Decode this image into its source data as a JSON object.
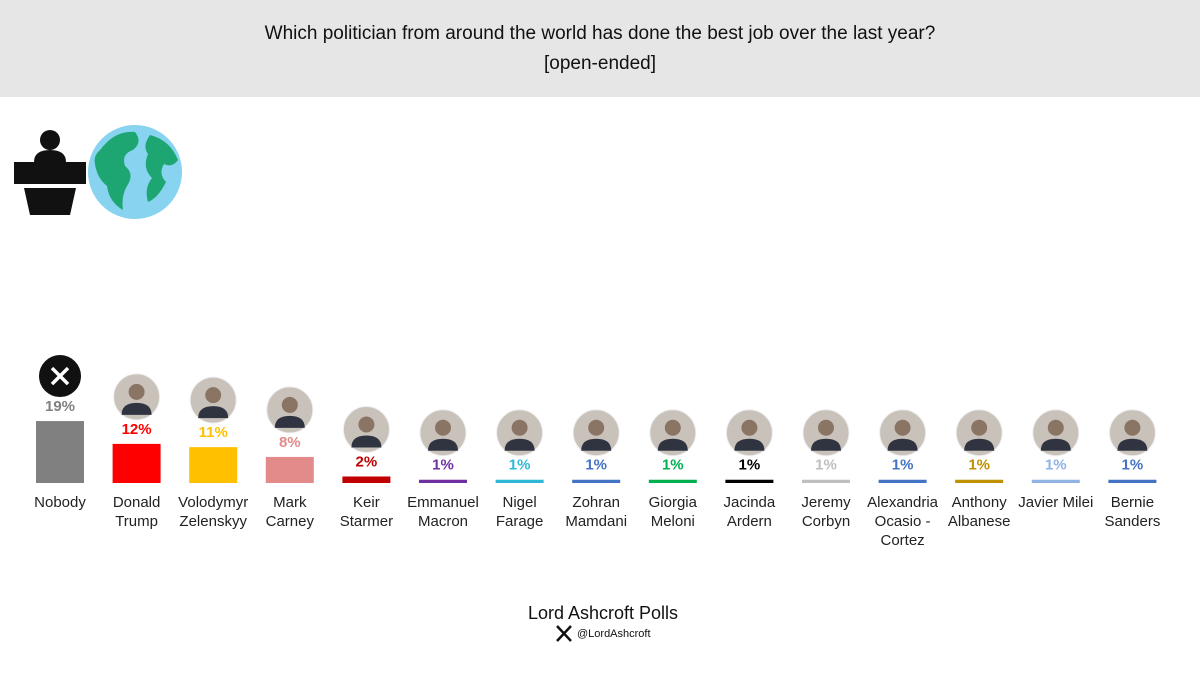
{
  "chart_data": {
    "type": "bar",
    "title": "Which politician from around the world has done the best job over the last year?",
    "subtitle": "[open-ended]",
    "categories": [
      "Nobody",
      "Donald Trump",
      "Volodymyr Zelenskyy",
      "Mark Carney",
      "Keir Starmer",
      "Emmanuel Macron",
      "Nigel Farage",
      "Zohran Mamdani",
      "Giorgia Meloni",
      "Jacinda Ardern",
      "Jeremy Corbyn",
      "Alexandria Ocasio - Cortez",
      "Anthony Albanese",
      "Javier Milei",
      "Bernie Sanders"
    ],
    "values": [
      19,
      12,
      11,
      8,
      2,
      1,
      1,
      1,
      1,
      1,
      1,
      1,
      1,
      1,
      1
    ],
    "value_labels": [
      "19%",
      "12%",
      "11%",
      "8%",
      "2%",
      "1%",
      "1%",
      "1%",
      "1%",
      "1%",
      "1%",
      "1%",
      "1%",
      "1%",
      "1%"
    ],
    "colors": [
      "#808080",
      "#ff0000",
      "#ffc000",
      "#e38a8a",
      "#c00000",
      "#7030a0",
      "#2eb8d6",
      "#4472c4",
      "#00b050",
      "#000000",
      "#bfbfbf",
      "#4472c4",
      "#bf9000",
      "#8fb4e3",
      "#4472c4"
    ]
  },
  "footer": {
    "title": "Lord Ashcroft Polls",
    "handle": "@LordAshcroft"
  }
}
